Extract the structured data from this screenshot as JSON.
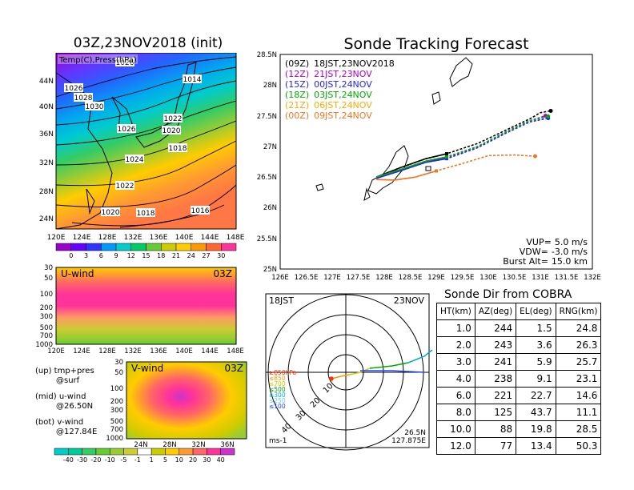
{
  "map_panel": {
    "title": "03Z,23NOV2018 (init)",
    "field_label": "Temp(C),Press(hPa)",
    "lat_labels": [
      "44N",
      "40N",
      "36N",
      "32N",
      "28N",
      "24N"
    ],
    "lon_labels": [
      "120E",
      "124E",
      "128E",
      "132E",
      "136E",
      "140E",
      "144E",
      "148E"
    ],
    "isobar_labels": [
      {
        "text": "1026"
      },
      {
        "text": "1014"
      },
      {
        "text": "1026"
      },
      {
        "text": "1028"
      },
      {
        "text": "1030"
      },
      {
        "text": "1022"
      },
      {
        "text": "1026"
      },
      {
        "text": "1020"
      },
      {
        "text": "1018"
      },
      {
        "text": "1024"
      },
      {
        "text": "1022"
      },
      {
        "text": "1020"
      },
      {
        "text": "1018"
      },
      {
        "text": "1016"
      }
    ],
    "colorbar": {
      "ticks": [
        "0",
        "3",
        "6",
        "9",
        "12",
        "15",
        "18",
        "21",
        "24",
        "27",
        "30"
      ],
      "colors": [
        "#9900cc",
        "#6600ff",
        "#3333ff",
        "#0099ff",
        "#00cccc",
        "#00cc66",
        "#66cc33",
        "#cccc00",
        "#ffcc00",
        "#ff9900",
        "#ff6633",
        "#ff3399"
      ]
    }
  },
  "uwind_panel": {
    "title": "U-wind",
    "time": "03Z",
    "y_labels": [
      "30",
      "50",
      "100",
      "200",
      "300",
      "500",
      "700",
      "1000"
    ],
    "x_labels": [
      "120E",
      "124E",
      "128E",
      "132E",
      "136E",
      "140E",
      "144E",
      "148E"
    ]
  },
  "vwind_panel": {
    "title": "V-wind",
    "time": "03Z",
    "y_labels": [
      "30",
      "50",
      "100",
      "200",
      "300",
      "500",
      "700",
      "1000"
    ],
    "x_labels": [
      "24N",
      "28N",
      "32N",
      "36N"
    ],
    "colorbar": {
      "ticks": [
        "-40",
        "-30",
        "-20",
        "-10",
        "-5",
        "-1",
        "1",
        "5",
        "10",
        "20",
        "30",
        "40"
      ],
      "colors": [
        "#00cccc",
        "#00cc99",
        "#33cc66",
        "#66cc33",
        "#99cc33",
        "#cccc33",
        "#ffffff",
        "#cccc00",
        "#ffcc00",
        "#ff9933",
        "#ff6666",
        "#ff3399",
        "#cc33cc"
      ]
    }
  },
  "legend_notes": [
    {
      "line1": "(up) tmp+pres",
      "line2": "@surf"
    },
    {
      "line1": "(mid) u-wind",
      "line2": "@26.50N"
    },
    {
      "line1": "(bot) v-wind",
      "line2": "@127.84E"
    }
  ],
  "tracking_panel": {
    "title": "Sonde Tracking Forecast",
    "lat_labels": [
      "28.5N",
      "28N",
      "27.5N",
      "27N",
      "26.5N",
      "26N",
      "25.5N",
      "25N"
    ],
    "lon_labels": [
      "126E",
      "126.5E",
      "127E",
      "127.5E",
      "128E",
      "128.5E",
      "129E",
      "129.5E",
      "130E",
      "130.5E",
      "131E",
      "131.5E",
      "132E"
    ],
    "launches": [
      {
        "code": "(09Z)",
        "local": "18JST,23NOV2018",
        "color": "#000000"
      },
      {
        "code": "(12Z)",
        "local": "21JST,23NOV",
        "color": "#aa00cc"
      },
      {
        "code": "(15Z)",
        "local": "00JST,24NOV",
        "color": "#2222ff"
      },
      {
        "code": "(18Z)",
        "local": "03JST,24NOV",
        "color": "#00aa00"
      },
      {
        "code": "(21Z)",
        "local": "06JST,24NOV",
        "color": "#ffaa00"
      },
      {
        "code": "(00Z)",
        "local": "09JST,24NOV",
        "color": "#ee7722"
      }
    ],
    "params": [
      {
        "label": "VUP=",
        "value": "5.0 m/s"
      },
      {
        "label": "VDW=",
        "value": "-3.0 m/s"
      },
      {
        "label": "Burst Alt=",
        "value": "15.0 km"
      }
    ]
  },
  "polar_panel": {
    "time_left": "18JST",
    "date_right": "23NOV",
    "bottom_left": "ms-1",
    "bottom_right_1": "26.5N",
    "bottom_right_2": "127.875E",
    "ring_labels": [
      "10",
      "20",
      "30",
      "40"
    ],
    "legend": [
      {
        "text": "≥850hPa",
        "color": "#ff3300"
      },
      {
        "text": "≤850",
        "color": "#ff9900"
      },
      {
        "text": "≤700",
        "color": "#cccc00"
      },
      {
        "text": "≤500",
        "color": "#00aa00"
      },
      {
        "text": "≤300",
        "color": "#00aacc"
      },
      {
        "text": "≤250",
        "color": "#66ccff"
      },
      {
        "text": "≤100",
        "color": "#2244ff"
      }
    ]
  },
  "sonde_dir": {
    "title": "Sonde Dir from COBRA",
    "headers": [
      "HT(km)",
      "AZ(deg)",
      "EL(deg)",
      "RNG(km)"
    ],
    "rows": [
      [
        "1.0",
        "244",
        "1.5",
        "24.8"
      ],
      [
        "2.0",
        "243",
        "3.6",
        "26.3"
      ],
      [
        "3.0",
        "241",
        "5.9",
        "25.7"
      ],
      [
        "4.0",
        "238",
        "9.1",
        "23.1"
      ],
      [
        "6.0",
        "221",
        "22.7",
        "14.6"
      ],
      [
        "8.0",
        "125",
        "43.7",
        "11.1"
      ],
      [
        "10.0",
        "88",
        "19.8",
        "28.5"
      ],
      [
        "12.0",
        "77",
        "13.4",
        "50.3"
      ]
    ]
  },
  "chart_data": [
    {
      "type": "heatmap",
      "title": "03Z,23NOV2018 (init)",
      "field": "Temp(C),Press(hPa)",
      "xlim": [
        120,
        150
      ],
      "ylim": [
        22,
        47
      ],
      "colorbar_levels": [
        0,
        3,
        6,
        9,
        12,
        15,
        18,
        21,
        24,
        27,
        30
      ],
      "isobars": [
        1014,
        1016,
        1018,
        1020,
        1022,
        1024,
        1026,
        1028,
        1030
      ]
    },
    {
      "type": "heatmap",
      "title": "U-wind",
      "time": "03Z",
      "xlim": [
        120,
        150
      ],
      "y_levels_hPa": [
        30,
        50,
        100,
        200,
        300,
        500,
        700,
        1000
      ]
    },
    {
      "type": "heatmap",
      "title": "V-wind",
      "time": "03Z",
      "xlim": [
        22,
        38
      ],
      "y_levels_hPa": [
        30,
        50,
        100,
        200,
        300,
        500,
        700,
        1000
      ],
      "colorbar_levels": [
        -40,
        -30,
        -20,
        -10,
        -5,
        -1,
        1,
        5,
        10,
        20,
        30,
        40
      ]
    },
    {
      "type": "line",
      "title": "Sonde Tracking Forecast",
      "xlim": [
        126,
        132
      ],
      "ylim": [
        25,
        28.5
      ],
      "series": [
        {
          "name": "(09Z) 18JST,23NOV2018",
          "x": [
            127.85,
            128.3,
            128.8,
            129.2,
            129.8,
            130.3,
            130.8,
            131.0,
            131.2
          ],
          "y": [
            26.5,
            26.65,
            26.8,
            26.88,
            27.05,
            27.25,
            27.45,
            27.55,
            27.58
          ]
        },
        {
          "name": "(12Z) 21JST,23NOV",
          "x": [
            127.85,
            128.3,
            128.8,
            129.2,
            129.8,
            130.3,
            130.8,
            131.1
          ],
          "y": [
            26.5,
            26.62,
            26.75,
            26.82,
            27.0,
            27.22,
            27.42,
            27.5
          ]
        },
        {
          "name": "(15Z) 00JST,24NOV",
          "x": [
            127.85,
            128.3,
            128.8,
            129.2,
            129.8,
            130.3,
            130.8,
            131.15
          ],
          "y": [
            26.48,
            26.6,
            26.74,
            26.8,
            26.98,
            27.2,
            27.4,
            27.46
          ]
        },
        {
          "name": "(18Z) 03JST,24NOV",
          "x": [
            127.85,
            128.3,
            128.8,
            129.2,
            129.8,
            130.3,
            130.8,
            131.15
          ],
          "y": [
            26.5,
            26.62,
            26.76,
            26.83,
            27.0,
            27.22,
            27.42,
            27.49
          ]
        },
        {
          "name": "(00Z) 09JST,24NOV",
          "x": [
            127.85,
            128.2,
            128.6,
            129.0,
            129.5,
            130.0,
            130.5,
            130.9
          ],
          "y": [
            26.46,
            26.45,
            26.5,
            26.6,
            26.72,
            26.85,
            26.86,
            26.84
          ]
        }
      ]
    },
    {
      "type": "table",
      "title": "Sonde Dir from COBRA",
      "columns": [
        "HT(km)",
        "AZ(deg)",
        "EL(deg)",
        "RNG(km)"
      ],
      "rows": [
        [
          1.0,
          244,
          1.5,
          24.8
        ],
        [
          2.0,
          243,
          3.6,
          26.3
        ],
        [
          3.0,
          241,
          5.9,
          25.7
        ],
        [
          4.0,
          238,
          9.1,
          23.1
        ],
        [
          6.0,
          221,
          22.7,
          14.6
        ],
        [
          8.0,
          125,
          43.7,
          11.1
        ],
        [
          10.0,
          88,
          19.8,
          28.5
        ],
        [
          12.0,
          77,
          13.4,
          50.3
        ]
      ]
    }
  ]
}
